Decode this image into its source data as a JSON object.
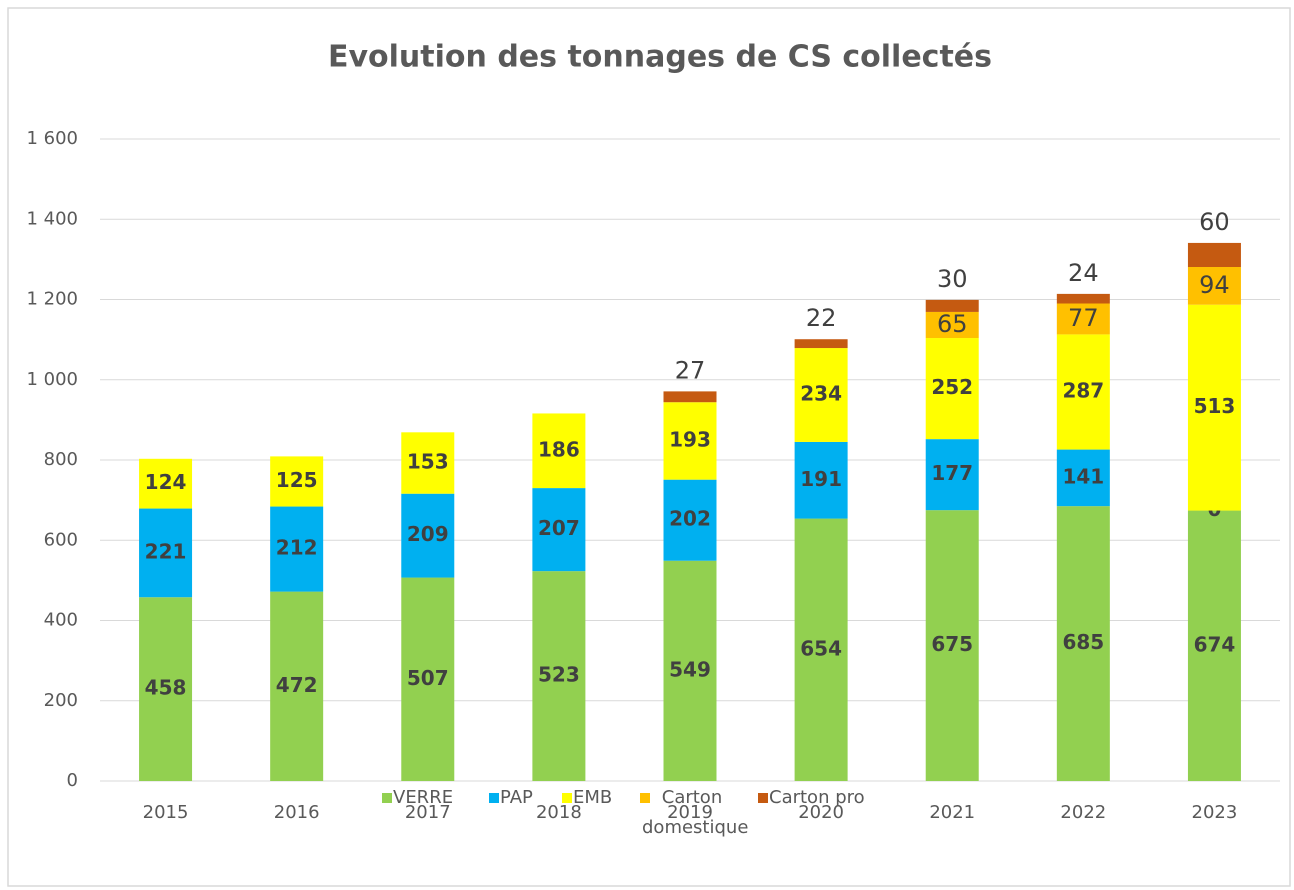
{
  "chart_data": {
    "type": "stacked_bar",
    "title": "Evolution des tonnages de CS collectés",
    "categories": [
      "2015",
      "2016",
      "2017",
      "2018",
      "2019",
      "2020",
      "2021",
      "2022",
      "2023"
    ],
    "series": [
      {
        "name": "VERRE",
        "color": "#92d050",
        "values": [
          458,
          472,
          507,
          523,
          549,
          654,
          675,
          685,
          674
        ]
      },
      {
        "name": "PAP",
        "color": "#00b0f0",
        "values": [
          221,
          212,
          209,
          207,
          202,
          191,
          177,
          141,
          0
        ]
      },
      {
        "name": "EMB",
        "color": "#ffff00",
        "values": [
          124,
          125,
          153,
          186,
          193,
          234,
          252,
          287,
          513
        ]
      },
      {
        "name": "Carton domestique",
        "color": "#ffc000",
        "values": [
          null,
          null,
          null,
          null,
          null,
          null,
          65,
          77,
          94
        ]
      },
      {
        "name": "Carton pro",
        "color": "#c55a11",
        "values": [
          null,
          null,
          null,
          null,
          27,
          22,
          30,
          24,
          60
        ]
      }
    ],
    "ylim": [
      0,
      1600
    ],
    "yticks": [
      0,
      200,
      400,
      600,
      800,
      {
        "value": 1000,
        "label": "1 000"
      },
      {
        "value": 1200,
        "label": "1 200"
      },
      {
        "value": 1400,
        "label": "1 400"
      },
      {
        "value": 1600,
        "label": "1 600"
      }
    ],
    "grid": true,
    "legend": "bottom"
  }
}
